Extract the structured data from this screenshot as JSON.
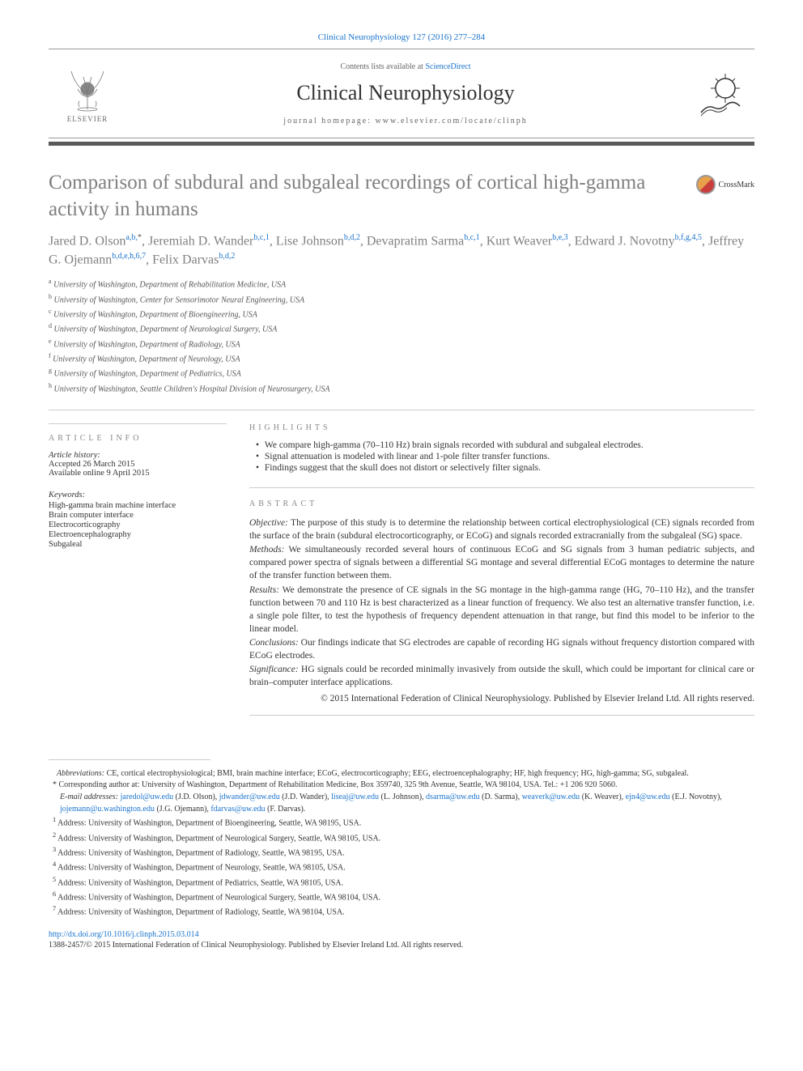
{
  "citation": "Clinical Neurophysiology 127 (2016) 277–284",
  "contents_line_prefix": "Contents lists available at ",
  "contents_line_link": "ScienceDirect",
  "journal_title": "Clinical Neurophysiology",
  "homepage_line": "journal homepage: www.elsevier.com/locate/clinph",
  "elsevier_text": "ELSEVIER",
  "article_title": "Comparison of subdural and subgaleal recordings of cortical high-gamma activity in humans",
  "crossmark_label": "CrossMark",
  "authors": [
    {
      "name": "Jared D. Olson",
      "sup": "a,b,",
      "star": "*"
    },
    {
      "name": "Jeremiah D. Wander",
      "sup": "b,c,1"
    },
    {
      "name": "Lise Johnson",
      "sup": "b,d,2"
    },
    {
      "name": "Devapratim Sarma",
      "sup": "b,c,1"
    },
    {
      "name": "Kurt Weaver",
      "sup": "b,e,3"
    },
    {
      "name": "Edward J. Novotny",
      "sup": "b,f,g,4,5"
    },
    {
      "name": "Jeffrey G. Ojemann",
      "sup": "b,d,e,h,6,7"
    },
    {
      "name": "Felix Darvas",
      "sup": "b,d,2"
    }
  ],
  "affiliations": [
    {
      "sup": "a",
      "text": "University of Washington, Department of Rehabilitation Medicine, USA"
    },
    {
      "sup": "b",
      "text": "University of Washington, Center for Sensorimotor Neural Engineering, USA"
    },
    {
      "sup": "c",
      "text": "University of Washington, Department of Bioengineering, USA"
    },
    {
      "sup": "d",
      "text": "University of Washington, Department of Neurological Surgery, USA"
    },
    {
      "sup": "e",
      "text": "University of Washington, Department of Radiology, USA"
    },
    {
      "sup": "f",
      "text": "University of Washington, Department of Neurology, USA"
    },
    {
      "sup": "g",
      "text": "University of Washington, Department of Pediatrics, USA"
    },
    {
      "sup": "h",
      "text": "University of Washington, Seattle Children's Hospital Division of Neurosurgery, USA"
    }
  ],
  "article_info_heading": "ARTICLE INFO",
  "article_history_label": "Article history:",
  "accepted": "Accepted 26 March 2015",
  "online": "Available online 9 April 2015",
  "keywords_label": "Keywords:",
  "keywords": [
    "High-gamma brain machine interface",
    "Brain computer interface",
    "Electrocorticography",
    "Electroencephalography",
    "Subgaleal"
  ],
  "highlights_heading": "HIGHLIGHTS",
  "highlights": [
    "We compare high-gamma (70–110 Hz) brain signals recorded with subdural and subgaleal electrodes.",
    "Signal attenuation is modeled with linear and 1-pole filter transfer functions.",
    "Findings suggest that the skull does not distort or selectively filter signals."
  ],
  "abstract_heading": "ABSTRACT",
  "abstract": {
    "objective_label": "Objective:",
    "objective": " The purpose of this study is to determine the relationship between cortical electrophysiological (CE) signals recorded from the surface of the brain (subdural electrocorticography, or ECoG) and signals recorded extracranially from the subgaleal (SG) space.",
    "methods_label": "Methods:",
    "methods": " We simultaneously recorded several hours of continuous ECoG and SG signals from 3 human pediatric subjects, and compared power spectra of signals between a differential SG montage and several differential ECoG montages to determine the nature of the transfer function between them.",
    "results_label": "Results:",
    "results": " We demonstrate the presence of CE signals in the SG montage in the high-gamma range (HG, 70–110 Hz), and the transfer function between 70 and 110 Hz is best characterized as a linear function of frequency. We also test an alternative transfer function, i.e. a single pole filter, to test the hypothesis of frequency dependent attenuation in that range, but find this model to be inferior to the linear model.",
    "conclusions_label": "Conclusions:",
    "conclusions": " Our findings indicate that SG electrodes are capable of recording HG signals without frequency distortion compared with ECoG electrodes.",
    "significance_label": "Significance:",
    "significance": " HG signals could be recorded minimally invasively from outside the skull, which could be important for clinical care or brain–computer interface applications."
  },
  "copyright": "© 2015 International Federation of Clinical Neurophysiology. Published by Elsevier Ireland Ltd. All rights reserved.",
  "abbrev_label": "Abbreviations:",
  "abbrev_text": " CE, cortical electrophysiological; BMI, brain machine interface; ECoG, electrocorticography; EEG, electroencephalography; HF, high frequency; HG, high-gamma; SG, subgaleal.",
  "corresponding_label": "Corresponding author at: ",
  "corresponding_text": "University of Washington, Department of Rehabilitation Medicine, Box 359740, 325 9th Avenue, Seattle, WA 98104, USA. Tel.: +1 206 920 5060.",
  "email_label": "E-mail addresses:",
  "emails": [
    {
      "addr": "jaredol@uw.edu",
      "name": "(J.D. Olson)"
    },
    {
      "addr": "jdwander@uw.edu",
      "name": "(J.D. Wander)"
    },
    {
      "addr": "liseaj@uw.edu",
      "name": "(L. Johnson)"
    },
    {
      "addr": "dsarma@uw.edu",
      "name": "(D. Sarma)"
    },
    {
      "addr": "weaverk@uw.edu",
      "name": "(K. Weaver)"
    },
    {
      "addr": "ejn4@uw.edu",
      "name": "(E.J. Novotny)"
    },
    {
      "addr": "jojemann@u.washington.edu",
      "name": "(J.G. Ojemann)"
    },
    {
      "addr": "fdarvas@uw.edu",
      "name": "(F. Darvas)"
    }
  ],
  "address_notes": [
    {
      "sup": "1",
      "text": "Address: University of Washington, Department of Bioengineering, Seattle, WA 98195, USA."
    },
    {
      "sup": "2",
      "text": "Address: University of Washington, Department of Neurological Surgery, Seattle, WA 98105, USA."
    },
    {
      "sup": "3",
      "text": "Address: University of Washington, Department of Radiology, Seattle, WA 98195, USA."
    },
    {
      "sup": "4",
      "text": "Address: University of Washington, Department of Neurology, Seattle, WA 98105, USA."
    },
    {
      "sup": "5",
      "text": "Address: University of Washington, Department of Pediatrics, Seattle, WA 98105, USA."
    },
    {
      "sup": "6",
      "text": "Address: University of Washington, Department of Neurological Surgery, Seattle, WA 98104, USA."
    },
    {
      "sup": "7",
      "text": "Address: University of Washington, Department of Radiology, Seattle, WA 98104, USA."
    }
  ],
  "doi": "http://dx.doi.org/10.1016/j.clinph.2015.03.014",
  "issn": "1388-2457/© 2015 International Federation of Clinical Neurophysiology. Published by Elsevier Ireland Ltd. All rights reserved."
}
